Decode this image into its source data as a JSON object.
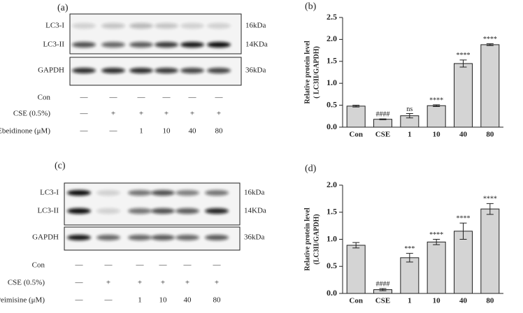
{
  "chart_data": [
    {
      "type": "bar",
      "panel": "(b)",
      "y_label": [
        "Relative protein level",
        "( LC3II/GAPDH)"
      ],
      "categories": [
        "Con",
        "CSE",
        "1",
        "10",
        "40",
        "80"
      ],
      "values": [
        0.48,
        0.18,
        0.26,
        0.49,
        1.45,
        1.88
      ],
      "errors": [
        0.02,
        0.01,
        0.05,
        0.02,
        0.08,
        0.02
      ],
      "annotations": [
        null,
        "####",
        "ns",
        "****",
        "****",
        "****"
      ],
      "color": "#d4d4d4",
      "ylim": [
        0,
        2.5
      ],
      "yticks": [
        {
          "value": 0,
          "label": "0.0"
        },
        0.5,
        {
          "value": 1,
          "label": "1.0"
        },
        1.5,
        {
          "value": 2,
          "label": "2.0"
        },
        2.5
      ]
    },
    {
      "type": "bar",
      "panel": "(d)",
      "y_label": [
        "Relative protein level",
        "(LC3II/GAPDH)"
      ],
      "categories": [
        "Con",
        "CSE",
        "1",
        "10",
        "40",
        "80"
      ],
      "values": [
        0.89,
        0.07,
        0.66,
        0.95,
        1.15,
        1.56
      ],
      "errors": [
        0.05,
        0.02,
        0.08,
        0.05,
        0.15,
        0.1
      ],
      "annotations": [
        null,
        "####",
        "***",
        "****",
        "****",
        "****"
      ],
      "color": "#d4d4d4",
      "ylim": [
        0,
        2
      ],
      "yticks": [
        {
          "value": 0,
          "label": "0.0"
        },
        0.5,
        {
          "value": 1,
          "label": "1.0"
        },
        1.5,
        {
          "value": 2,
          "label": "2.0"
        }
      ]
    }
  ],
  "blots": [
    {
      "panel": "(a)",
      "bands": [
        "LC3-I",
        "LC3-II",
        "GAPDH"
      ],
      "sizes": [
        "16kDa",
        "14KDa",
        "36kDa"
      ],
      "rows": [
        {
          "label": "Con",
          "marks": [
            "—",
            "—",
            "—",
            "—",
            "—",
            "—"
          ]
        },
        {
          "label": "CSE (0.5%)",
          "marks": [
            "—",
            "+",
            "+",
            "+",
            "+",
            "+"
          ]
        },
        {
          "label": "Ebeidinone (μM)",
          "marks": [
            "—",
            "—",
            "1",
            "10",
            "40",
            "80"
          ]
        }
      ]
    },
    {
      "panel": "(c)",
      "bands": [
        "LC3-I",
        "LC3-II",
        "GAPDH"
      ],
      "sizes": [
        "16kDa",
        "14KDa",
        "36kDa"
      ],
      "rows": [
        {
          "label": "Con",
          "marks": [
            "—",
            "—",
            "—",
            "—",
            "—",
            "—"
          ]
        },
        {
          "label": "CSE (0.5%)",
          "marks": [
            "—",
            "+",
            "+",
            "+",
            "+",
            "+"
          ]
        },
        {
          "label": "Peimisine (μM)",
          "marks": [
            "—",
            "—",
            "1",
            "10",
            "40",
            "80"
          ]
        }
      ]
    }
  ]
}
